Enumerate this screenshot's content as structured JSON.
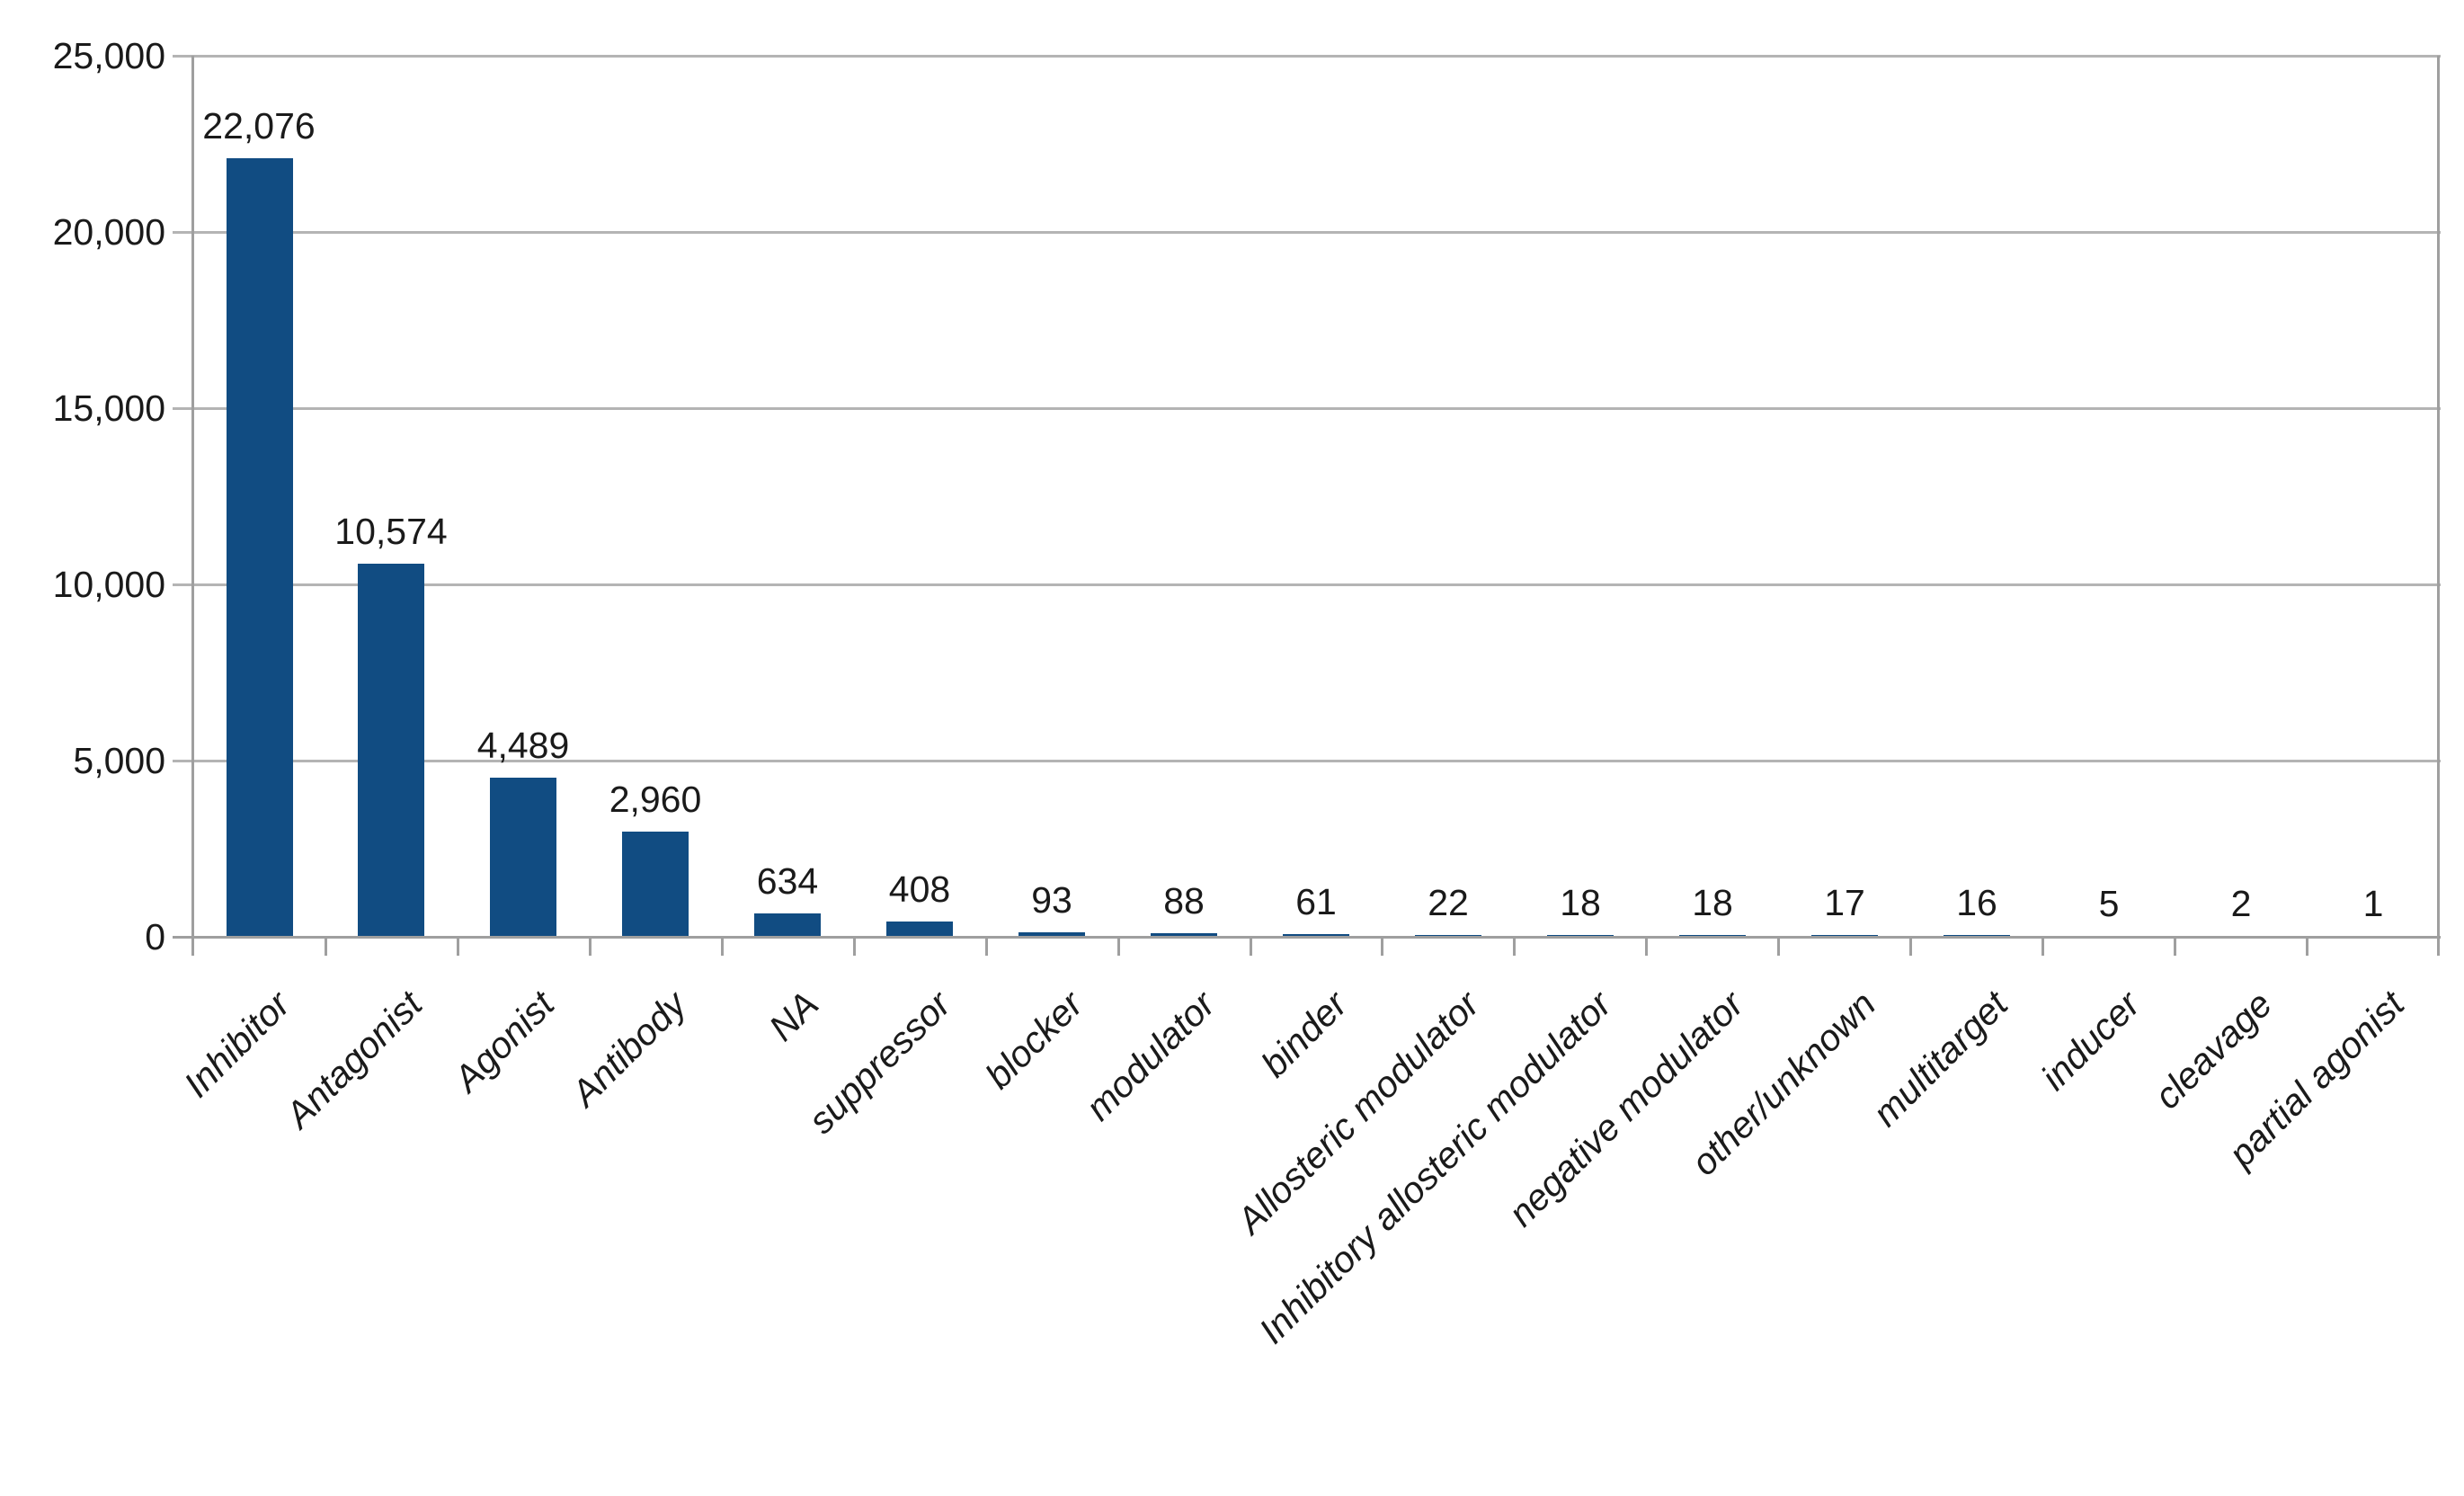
{
  "chart_data": {
    "type": "bar",
    "title": "",
    "xlabel": "",
    "ylabel": "",
    "categories": [
      "Inhibitor",
      "Antagonist",
      "Agonist",
      "Antibody",
      "NA",
      "suppressor",
      "blocker",
      "modulator",
      "binder",
      "Allosteric modulator",
      "Inhibitory allosteric modulator",
      "negative modulator",
      "other/unknown",
      "multitarget",
      "inducer",
      "cleavage",
      "partial agonist"
    ],
    "values": [
      22076,
      10574,
      4489,
      2960,
      634,
      408,
      93,
      88,
      61,
      22,
      18,
      18,
      17,
      16,
      5,
      2,
      1
    ],
    "value_labels": [
      "22,076",
      "10,574",
      "4,489",
      "2,960",
      "634",
      "408",
      "93",
      "88",
      "61",
      "22",
      "18",
      "18",
      "17",
      "16",
      "5",
      "2",
      "1"
    ],
    "y_axis": {
      "min": 0,
      "max": 25000,
      "step": 5000,
      "tick_labels": [
        "25,000",
        "20,000",
        "15,000",
        "10,000",
        "5,000",
        "0"
      ]
    },
    "grid": "horizontal",
    "legend": "none",
    "colors": {
      "bar": "#114C82",
      "gridline": "#b4b4b4",
      "axis": "#9f9f9f",
      "text": "#1a1a1a"
    }
  }
}
